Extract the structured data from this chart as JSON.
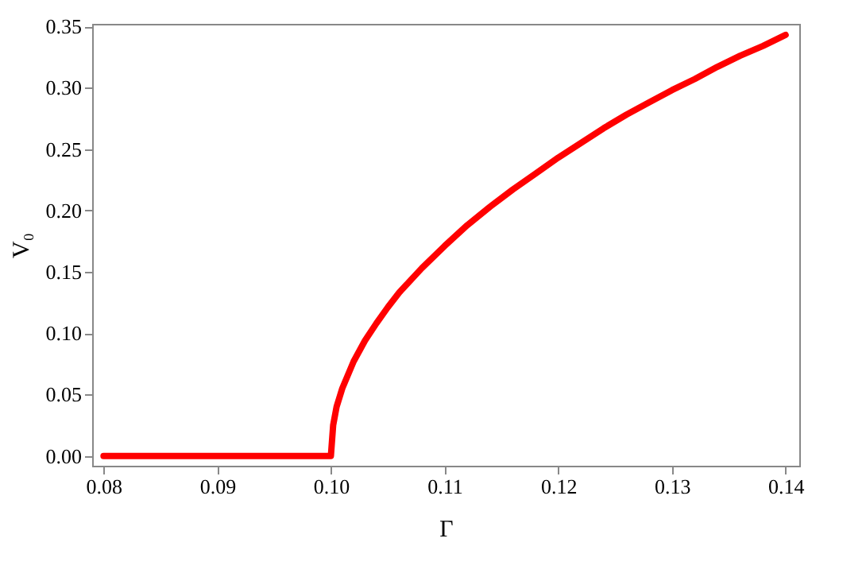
{
  "chart_data": {
    "type": "line",
    "xlabel": "Γ",
    "ylabel": "V₀",
    "xlim": [
      0.079,
      0.1412
    ],
    "ylim": [
      -0.008,
      0.352
    ],
    "xticks": [
      {
        "value": 0.08,
        "label": "0.08"
      },
      {
        "value": 0.09,
        "label": "0.09"
      },
      {
        "value": 0.1,
        "label": "0.10"
      },
      {
        "value": 0.11,
        "label": "0.11"
      },
      {
        "value": 0.12,
        "label": "0.12"
      },
      {
        "value": 0.13,
        "label": "0.13"
      },
      {
        "value": 0.14,
        "label": "0.14"
      }
    ],
    "yticks": [
      {
        "value": 0,
        "label": "0.00"
      },
      {
        "value": 0.05,
        "label": "0.05"
      },
      {
        "value": 0.1,
        "label": "0.10"
      },
      {
        "value": 0.15,
        "label": "0.15"
      },
      {
        "value": 0.2,
        "label": "0.20"
      },
      {
        "value": 0.25,
        "label": "0.25"
      },
      {
        "value": 0.3,
        "label": "0.30"
      },
      {
        "value": 0.35,
        "label": "0.35"
      }
    ],
    "grid": false,
    "marker": "none",
    "line_style": "solid",
    "series": [
      {
        "color": "#ff0000",
        "x": [
          0.08,
          0.09,
          0.1,
          0.1002,
          0.1005,
          0.101,
          0.102,
          0.103,
          0.104,
          0.105,
          0.106,
          0.108,
          0.11,
          0.112,
          0.114,
          0.116,
          0.118,
          0.12,
          0.122,
          0.124,
          0.126,
          0.128,
          0.13,
          0.132,
          0.134,
          0.136,
          0.138,
          0.14
        ],
        "values": [
          0,
          0,
          0,
          0.025,
          0.04,
          0.055,
          0.077,
          0.094,
          0.108,
          0.121,
          0.133,
          0.153,
          0.171,
          0.188,
          0.203,
          0.217,
          0.23,
          0.243,
          0.255,
          0.267,
          0.278,
          0.288,
          0.298,
          0.307,
          0.317,
          0.326,
          0.334,
          0.343
        ]
      }
    ]
  }
}
